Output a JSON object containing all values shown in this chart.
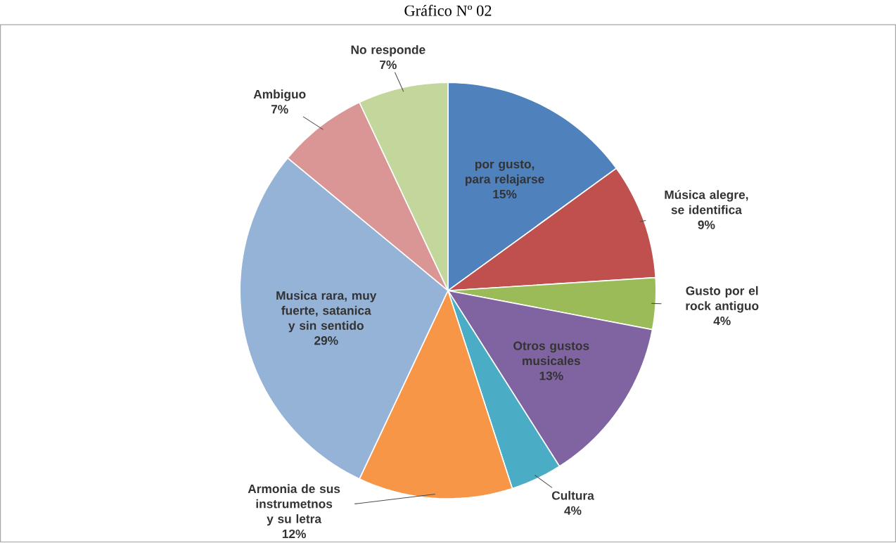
{
  "chart_data": {
    "type": "pie",
    "title": "Gráfico Nº 02",
    "categories": [
      "por gusto, para relajarse",
      "Música alegre, se identifica",
      "Gusto por el rock antiguo",
      "Otros gustos musicales",
      "Cultura",
      "Armonia de sus instrumetnos y su letra",
      "Musica rara, muy fuerte, satanica y sin sentido",
      "Ambiguo",
      "No responde"
    ],
    "values": [
      15,
      9,
      4,
      13,
      4,
      12,
      29,
      7,
      7
    ],
    "colors": [
      "#4f81bd",
      "#c0504d",
      "#9bbb59",
      "#8064a2",
      "#4bacc6",
      "#f79646",
      "#95b3d7",
      "#d99694",
      "#c3d69b"
    ],
    "value_labels": [
      "15%",
      "9%",
      "4%",
      "13%",
      "4%",
      "12%",
      "29%",
      "7%",
      "7%"
    ]
  }
}
